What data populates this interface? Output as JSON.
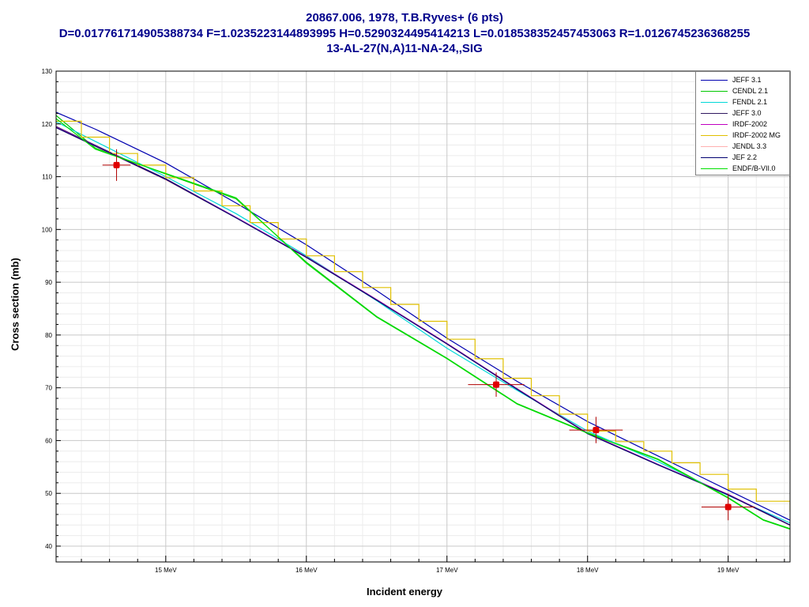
{
  "title": {
    "line1": "20867.006, 1978, T.B.Ryves+ (6 pts)",
    "line2": "D=0.017761714905388734 F=1.0235223144893995 H=0.5290324495414213 L=0.018538352457453063 R=1.0126745236368255",
    "line3": "13-AL-27(N,A)11-NA-24,,SIG"
  },
  "chart_data": {
    "type": "line",
    "xlabel": "Incident energy",
    "ylabel": "Cross section (mb)",
    "x_unit": "MeV",
    "xlim": [
      14.22,
      19.44
    ],
    "ylim": [
      37,
      130
    ],
    "x_ticks": [
      15,
      16,
      17,
      18,
      19
    ],
    "x_tick_labels": [
      "15 MeV",
      "16 MeV",
      "17 MeV",
      "18 MeV",
      "19 MeV"
    ],
    "y_ticks": [
      40,
      50,
      60,
      70,
      80,
      90,
      100,
      110,
      120,
      130
    ],
    "y_tick_labels": [
      "40",
      "50",
      "60",
      "70",
      "80",
      "90",
      "100",
      "110",
      "120",
      "130"
    ],
    "grid": true,
    "legend_position": "top-right",
    "series": [
      {
        "name": "JEFF 3.1",
        "color": "#0000b0",
        "points": [
          [
            14.22,
            122.2
          ],
          [
            14.5,
            119.0
          ],
          [
            15.0,
            112.6
          ],
          [
            15.5,
            105.0
          ],
          [
            16.0,
            97.1
          ],
          [
            16.5,
            88.4
          ],
          [
            17.0,
            79.4
          ],
          [
            17.5,
            71.2
          ],
          [
            18.0,
            63.6
          ],
          [
            18.5,
            57.1
          ],
          [
            19.0,
            50.6
          ],
          [
            19.44,
            44.9
          ]
        ]
      },
      {
        "name": "CENDL 2.1",
        "color": "#00c800",
        "points": [
          [
            14.22,
            121.6
          ],
          [
            14.5,
            115.4
          ],
          [
            15.0,
            110.5
          ],
          [
            15.5,
            105.8
          ],
          [
            16.0,
            93.8
          ],
          [
            16.5,
            83.5
          ],
          [
            17.0,
            75.6
          ],
          [
            17.5,
            67.0
          ],
          [
            18.0,
            61.5
          ],
          [
            18.5,
            56.5
          ],
          [
            19.0,
            49.2
          ],
          [
            19.25,
            45.0
          ],
          [
            19.44,
            43.3
          ]
        ]
      },
      {
        "name": "FENDL 2.1",
        "color": "#00d8d8",
        "points": [
          [
            14.22,
            120.4
          ],
          [
            15.0,
            110.0
          ],
          [
            15.5,
            103.0
          ],
          [
            16.0,
            95.0
          ],
          [
            16.5,
            86.5
          ],
          [
            17.0,
            77.5
          ],
          [
            17.5,
            69.5
          ],
          [
            18.0,
            61.8
          ],
          [
            18.5,
            56.0
          ],
          [
            19.0,
            49.6
          ],
          [
            19.44,
            44.4
          ]
        ]
      },
      {
        "name": "JEFF 3.0",
        "color": "#301860",
        "points": [
          [
            14.22,
            119.5
          ],
          [
            15.0,
            109.6
          ],
          [
            15.5,
            102.3
          ],
          [
            16.0,
            94.8
          ],
          [
            16.5,
            86.7
          ],
          [
            17.0,
            78.4
          ],
          [
            17.5,
            69.8
          ],
          [
            18.0,
            61.4
          ],
          [
            18.5,
            55.5
          ],
          [
            19.0,
            49.8
          ],
          [
            19.44,
            44.0
          ]
        ]
      },
      {
        "name": "IRDF-2002",
        "color": "#c000c0",
        "points": [
          [
            14.22,
            119.4
          ],
          [
            15.0,
            109.5
          ],
          [
            15.5,
            102.3
          ],
          [
            16.0,
            94.8
          ],
          [
            16.5,
            86.7
          ],
          [
            17.0,
            78.4
          ],
          [
            17.5,
            69.8
          ],
          [
            18.0,
            61.4
          ],
          [
            18.5,
            55.5
          ],
          [
            19.0,
            49.8
          ],
          [
            19.44,
            44.0
          ]
        ]
      },
      {
        "name": "IRDF-2002 MG",
        "color": "#e0c000",
        "step": true,
        "points": [
          [
            14.22,
            120.5
          ],
          [
            14.4,
            117.5
          ],
          [
            14.6,
            114.4
          ],
          [
            14.8,
            112.2
          ],
          [
            15.0,
            109.8
          ],
          [
            15.2,
            107.3
          ],
          [
            15.4,
            104.5
          ],
          [
            15.6,
            101.3
          ],
          [
            15.8,
            98.2
          ],
          [
            16.0,
            95.0
          ],
          [
            16.2,
            92.0
          ],
          [
            16.4,
            89.0
          ],
          [
            16.6,
            85.8
          ],
          [
            16.8,
            82.6
          ],
          [
            17.0,
            79.2
          ],
          [
            17.2,
            75.5
          ],
          [
            17.4,
            71.8
          ],
          [
            17.6,
            68.5
          ],
          [
            17.8,
            65.0
          ],
          [
            18.0,
            61.8
          ],
          [
            18.2,
            59.8
          ],
          [
            18.4,
            58.0
          ],
          [
            18.6,
            55.8
          ],
          [
            18.8,
            53.6
          ],
          [
            19.0,
            50.8
          ],
          [
            19.2,
            48.5
          ],
          [
            19.44,
            46.5
          ]
        ]
      },
      {
        "name": "JENDL 3.3",
        "color": "#ffb0b0",
        "points": [
          [
            14.22,
            119.3
          ],
          [
            15.0,
            109.4
          ],
          [
            15.5,
            102.2
          ],
          [
            16.0,
            94.7
          ],
          [
            16.5,
            86.6
          ],
          [
            17.0,
            78.3
          ],
          [
            17.5,
            69.7
          ],
          [
            18.0,
            61.3
          ],
          [
            18.5,
            55.4
          ],
          [
            19.0,
            49.7
          ],
          [
            19.44,
            43.9
          ]
        ]
      },
      {
        "name": "JEF 2.2",
        "color": "#000070",
        "points": [
          [
            14.22,
            119.3
          ],
          [
            15.0,
            109.5
          ],
          [
            15.5,
            102.2
          ],
          [
            16.0,
            94.7
          ],
          [
            16.5,
            86.6
          ],
          [
            17.0,
            78.3
          ],
          [
            17.5,
            69.7
          ],
          [
            18.0,
            61.3
          ],
          [
            18.5,
            55.4
          ],
          [
            19.0,
            49.7
          ],
          [
            19.44,
            44.0
          ]
        ]
      },
      {
        "name": "ENDF/B-VII.0",
        "color": "#00e000",
        "points": [
          [
            14.22,
            121.0
          ],
          [
            14.5,
            115.2
          ],
          [
            15.0,
            110.6
          ],
          [
            15.5,
            106.0
          ],
          [
            16.0,
            93.6
          ],
          [
            16.5,
            83.4
          ],
          [
            17.0,
            75.5
          ],
          [
            17.5,
            66.9
          ],
          [
            18.0,
            61.4
          ],
          [
            18.5,
            56.4
          ],
          [
            19.0,
            49.1
          ],
          [
            19.25,
            44.9
          ],
          [
            19.44,
            43.2
          ]
        ]
      }
    ],
    "experimental": {
      "color": "#e00000",
      "points": [
        {
          "x": 14.65,
          "y": 112.2,
          "dx": 0.1,
          "dy": 3.0
        },
        {
          "x": 17.35,
          "y": 70.6,
          "dx": 0.2,
          "dy": 2.3
        },
        {
          "x": 18.06,
          "y": 62.0,
          "dx": 0.19,
          "dy": 2.5
        },
        {
          "x": 19.0,
          "y": 47.4,
          "dx": 0.19,
          "dy": 2.5
        }
      ]
    }
  }
}
